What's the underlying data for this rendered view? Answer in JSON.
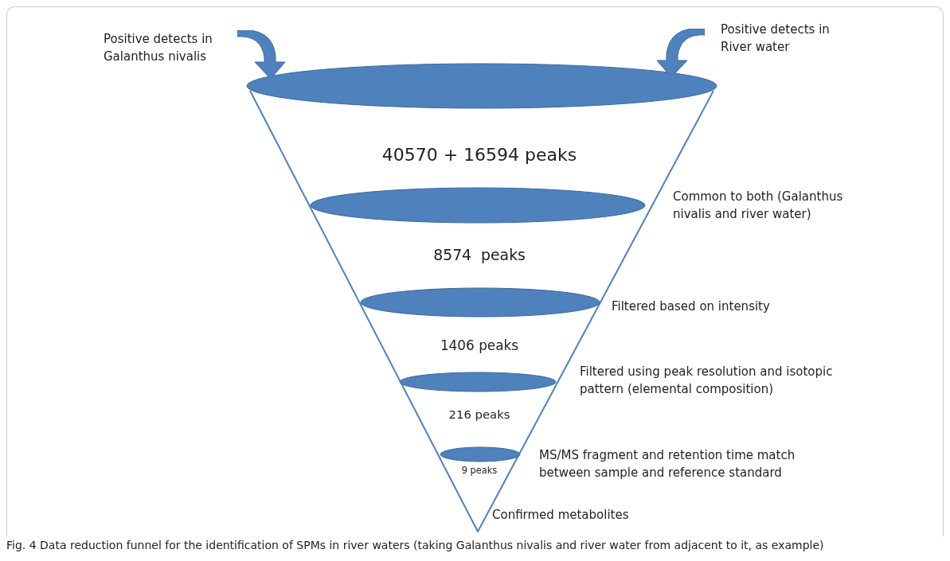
{
  "chart_data": {
    "type": "other",
    "title": "Fig. 4  Data reduction funnel for the identification of SPMs in river waters (taking Galanthus nivalis and river water from adjacent to it, as example)",
    "annotations": [
      "Positive detects in Galanthus nivalis",
      "Positive detects in River water"
    ],
    "categories": [
      "Common to both (Galanthus nivalis and river water)",
      "Filtered based on intensity",
      "Filtered using peak resolution and isotopic pattern (elemental composition)",
      "MS/MS fragment and retention time match between sample and reference standard",
      "Confirmed metabolites"
    ],
    "values": [
      null,
      8574,
      1406,
      216,
      9
    ],
    "value_labels": [
      "40570 + 16594 peaks",
      "8574  peaks",
      "1406 peaks",
      "216 peaks",
      "9 peaks"
    ],
    "color": "#4f81bd"
  }
}
